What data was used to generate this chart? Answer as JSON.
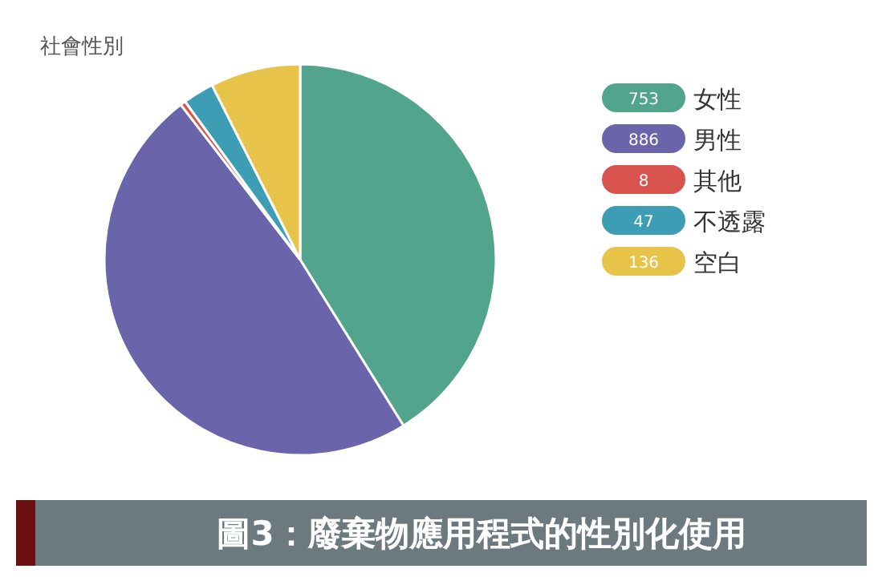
{
  "chart_data": {
    "type": "pie",
    "title": "社會性別",
    "categories": [
      "女性",
      "男性",
      "其他",
      "不透露",
      "空白"
    ],
    "values": [
      753,
      886,
      8,
      47,
      136
    ],
    "colors": [
      "#52a58c",
      "#6a64aa",
      "#d9534f",
      "#3d9db5",
      "#e8c34a"
    ],
    "legend": "right",
    "data_labels": true,
    "annotations": [
      "圖3：廢棄物應用程式的性別化使用"
    ]
  }
}
